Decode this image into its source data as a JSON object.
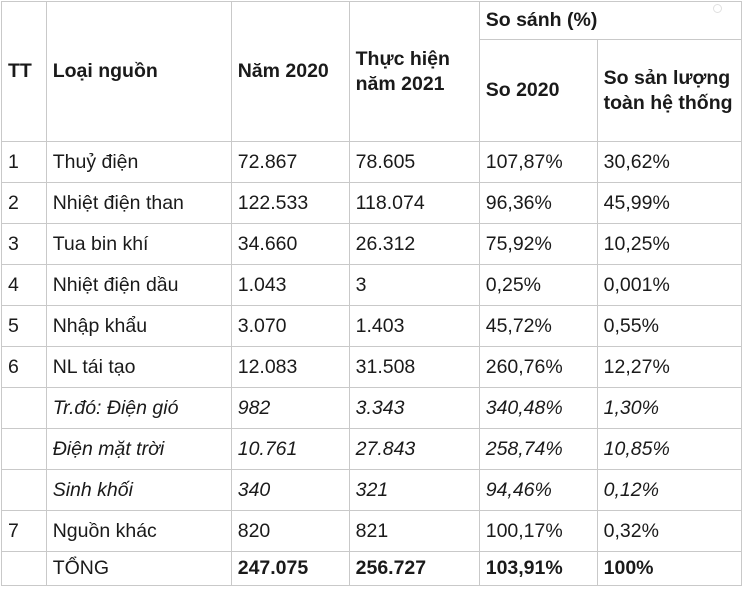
{
  "headers": {
    "tt": "TT",
    "type": "Loại nguồn",
    "y2020": "Năm 2020",
    "y2021": "Thực hiện năm 2021",
    "compare": "So sánh (%)",
    "vs2020": "So 2020",
    "share": "So sản lượng toàn hệ thống"
  },
  "rows": [
    {
      "tt": "1",
      "name": "Thuỷ điện",
      "y2020": "72.867",
      "y2021": "78.605",
      "vs2020": "107,87%",
      "share": "30,62%"
    },
    {
      "tt": "2",
      "name": "Nhiệt điện than",
      "y2020": "122.533",
      "y2021": "118.074",
      "vs2020": "96,36%",
      "share": "45,99%"
    },
    {
      "tt": "3",
      "name": "Tua bin khí",
      "y2020": "34.660",
      "y2021": "26.312",
      "vs2020": "75,92%",
      "share": "10,25%"
    },
    {
      "tt": "4",
      "name": "Nhiệt điện dầu",
      "y2020": "1.043",
      "y2021": "3",
      "vs2020": "0,25%",
      "share": "0,001%"
    },
    {
      "tt": "5",
      "name": "Nhập khẩu",
      "y2020": "3.070",
      "y2021": "1.403",
      "vs2020": "45,72%",
      "share": "0,55%"
    },
    {
      "tt": "6",
      "name": "NL tái tạo",
      "y2020": "12.083",
      "y2021": "31.508",
      "vs2020": "260,76%",
      "share": "12,27%"
    },
    {
      "tt": "",
      "name": "Tr.đó: Điện gió",
      "y2020": "982",
      "y2021": "3.343",
      "vs2020": "340,48%",
      "share": "1,30%"
    },
    {
      "tt": "",
      "name": "Điện mặt trời",
      "y2020": "10.761",
      "y2021": "27.843",
      "vs2020": "258,74%",
      "share": "10,85%"
    },
    {
      "tt": "",
      "name": "Sinh khối",
      "y2020": "340",
      "y2021": "321",
      "vs2020": "94,46%",
      "share": "0,12%"
    },
    {
      "tt": "7",
      "name": "Nguồn khác",
      "y2020": "820",
      "y2021": "821",
      "vs2020": "100,17%",
      "share": "0,32%"
    }
  ],
  "total": {
    "label": "TỔNG",
    "y2020": "247.075",
    "y2021": "256.727",
    "vs2020": "103,91%",
    "share": "100%"
  }
}
